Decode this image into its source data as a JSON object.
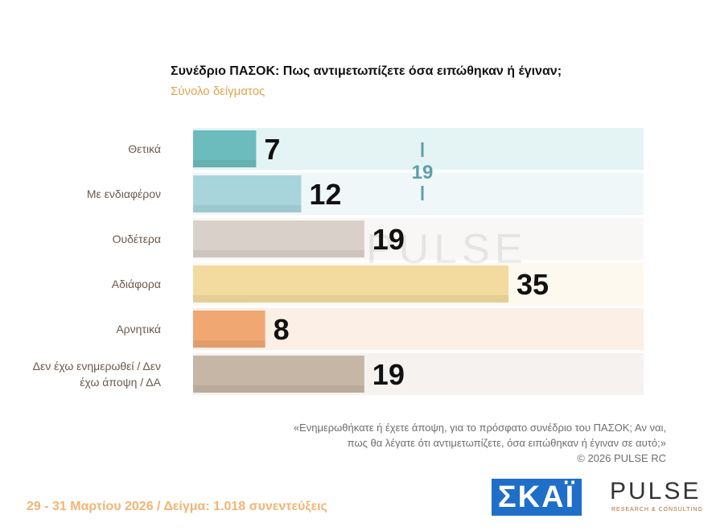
{
  "chart_data": {
    "type": "bar",
    "orientation": "horizontal",
    "title": "Συνέδριο ΠΑΣΟΚ: Πως αντιμετωπίζετε όσα ειπώθηκαν ή έγιναν;",
    "subtitle": "Σύνολο δείγματος",
    "categories": [
      "Θετικά",
      "Με ενδιαφέρον",
      "Ουδέτερα",
      "Αδιάφορα",
      "Αρνητικά",
      "Δεν έχω ενημερωθεί / Δεν έχω άποψη / ΔΑ"
    ],
    "values": [
      7,
      12,
      19,
      35,
      8,
      19
    ],
    "colors": [
      "#6cbcbd",
      "#a8d5dc",
      "#d9d1c9",
      "#f3dba0",
      "#f0a772",
      "#c6b6a6"
    ],
    "xlim": [
      0,
      50
    ],
    "bracket": {
      "value": 19,
      "from": 0,
      "to": 1,
      "color": "#5f9fa8"
    },
    "note": [
      "«Ενημερωθήκατε ή έχετε άποψη, για το πρόσφατο συνέδριο του ΠΑΣΟΚ; Αν ναι,",
      "πως θα λέγατε ότι αντιμετωπίζετε, όσα ειπώθηκαν ή έγιναν σε αυτό;»",
      "©  2026  PULSE RC"
    ],
    "footer": "29 - 31  Μαρτίου 2026  /  Δείγμα:  1.018 συνεντεύξεις",
    "logos": {
      "skai": "ΣΚΑΪ",
      "pulse": "PULSE",
      "pulse_sub": "RESEARCH & CONSULTING"
    }
  }
}
